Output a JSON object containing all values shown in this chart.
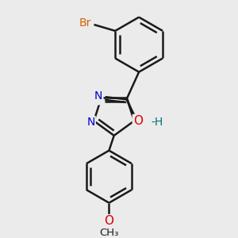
{
  "background_color": "#ebebeb",
  "bond_color": "#1a1a1a",
  "bond_width": 1.8,
  "atom_colors": {
    "Br": "#cc6600",
    "O": "#dd0000",
    "N": "#0000cc",
    "C": "#1a1a1a",
    "H": "#007070"
  },
  "font_size": 10,
  "fig_width": 3.0,
  "fig_height": 3.0,
  "dpi": 100
}
